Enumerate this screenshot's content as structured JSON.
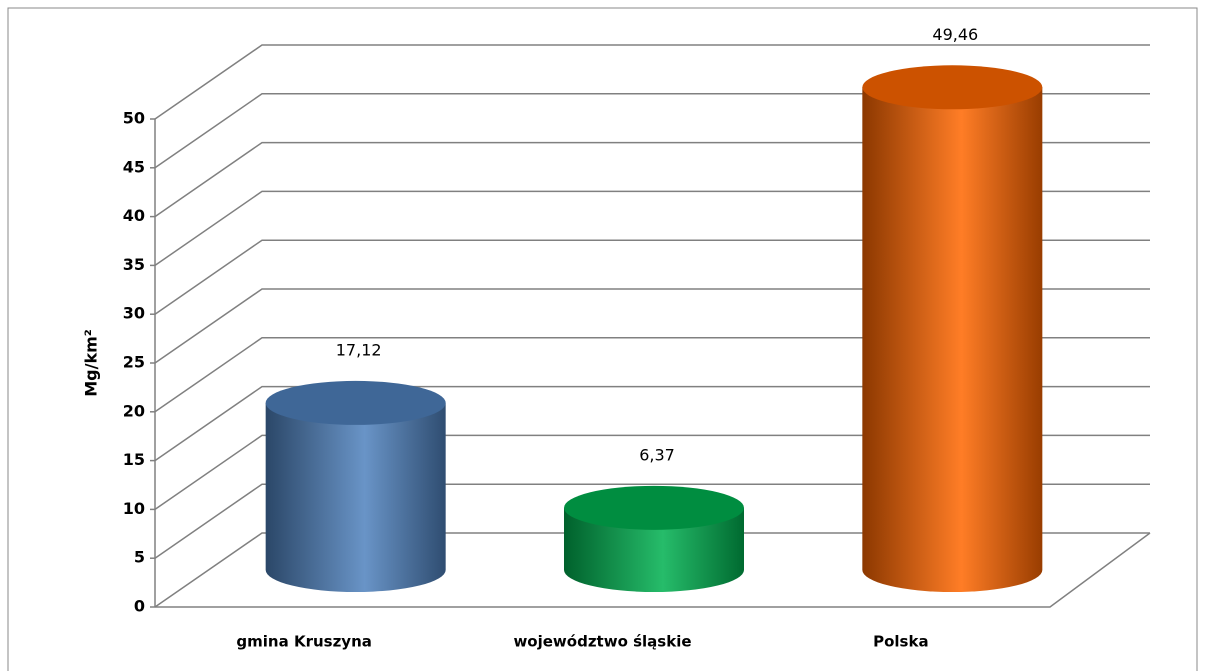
{
  "chart_data": {
    "type": "bar3d",
    "y_label": "Mg/km²",
    "categories": [
      "gmina Kruszyna",
      "województwo śląskie",
      "Polska"
    ],
    "values": [
      17.12,
      6.37,
      49.46
    ],
    "value_labels": [
      "17,12",
      "6,37",
      "49,46"
    ],
    "colors": [
      "#4f81bd",
      "#00b050",
      "#ff6600"
    ],
    "ylim": [
      0,
      50
    ],
    "yticks": [
      0,
      5,
      10,
      15,
      20,
      25,
      30,
      35,
      40,
      45,
      50
    ],
    "grid": true
  }
}
